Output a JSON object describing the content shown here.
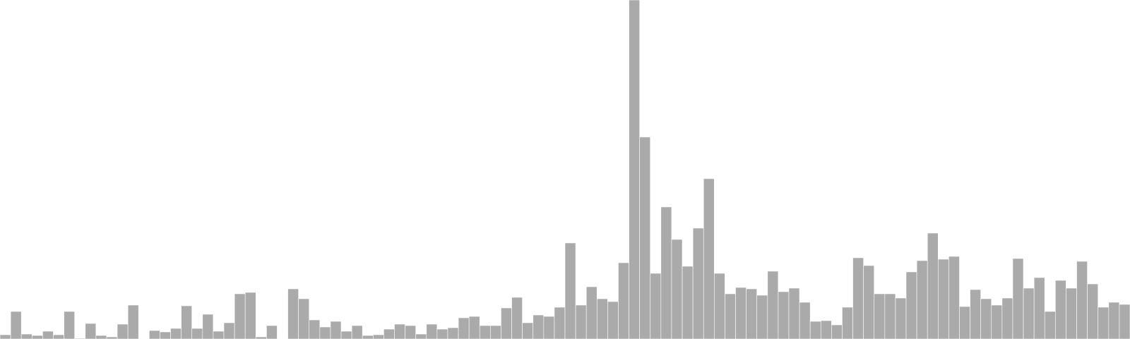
{
  "chart_data": {
    "type": "bar",
    "bar_color": "#aaaaaa",
    "background": "#ffffff",
    "grid": false,
    "axes_visible": false,
    "ylim": [
      0,
      480
    ],
    "values": [
      6,
      39,
      7,
      5,
      11,
      6,
      39,
      1,
      22,
      5,
      3,
      21,
      48,
      0,
      12,
      10,
      15,
      47,
      15,
      35,
      11,
      23,
      64,
      66,
      3,
      19,
      0,
      71,
      57,
      27,
      17,
      25,
      11,
      19,
      5,
      6,
      14,
      21,
      19,
      7,
      21,
      14,
      16,
      30,
      32,
      19,
      19,
      44,
      59,
      23,
      34,
      32,
      45,
      136,
      48,
      74,
      57,
      53,
      108,
      480,
      286,
      93,
      187,
      141,
      103,
      157,
      227,
      93,
      64,
      73,
      71,
      62,
      96,
      67,
      72,
      52,
      25,
      26,
      20,
      45,
      115,
      104,
      64,
      64,
      58,
      95,
      111,
      150,
      113,
      117,
      46,
      70,
      57,
      48,
      58,
      114,
      72,
      87,
      39,
      83,
      72,
      110,
      78,
      45,
      52,
      49
    ]
  }
}
